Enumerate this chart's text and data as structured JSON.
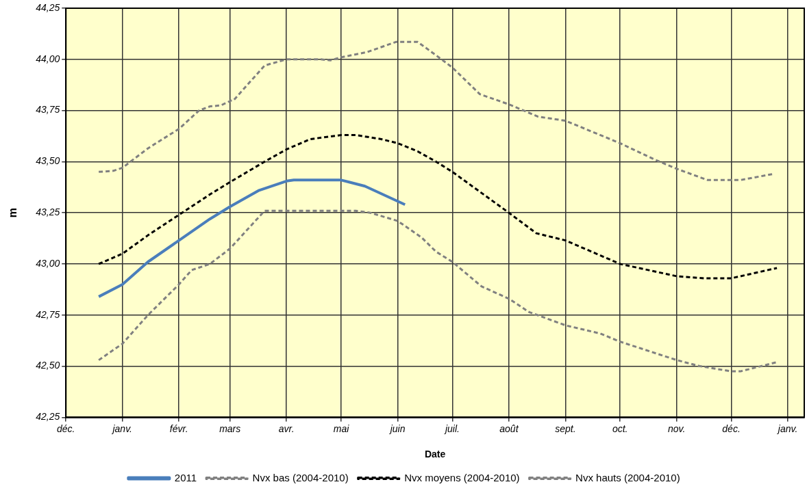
{
  "chart_data": {
    "type": "line",
    "xlabel": "Date",
    "ylabel": "m",
    "xlim": [
      "2010-12-01",
      "2012-01-10"
    ],
    "xticks": [
      {
        "value": "2010-12-01",
        "label": "déc."
      },
      {
        "value": "2011-01-01",
        "label": "janv."
      },
      {
        "value": "2011-02-01",
        "label": "févr."
      },
      {
        "value": "2011-03-01",
        "label": "mars"
      },
      {
        "value": "2011-04-01",
        "label": "avr."
      },
      {
        "value": "2011-05-01",
        "label": "mai"
      },
      {
        "value": "2011-06-01",
        "label": "juin"
      },
      {
        "value": "2011-07-01",
        "label": "juil."
      },
      {
        "value": "2011-08-01",
        "label": "août"
      },
      {
        "value": "2011-09-01",
        "label": "sept."
      },
      {
        "value": "2011-10-01",
        "label": "oct."
      },
      {
        "value": "2011-11-01",
        "label": "nov."
      },
      {
        "value": "2011-12-01",
        "label": "déc."
      },
      {
        "value": "2012-01-01",
        "label": "janv."
      }
    ],
    "ylim": [
      42.25,
      44.25
    ],
    "yticks": [
      {
        "value": 42.25,
        "label": "42,25"
      },
      {
        "value": 42.5,
        "label": "42,50"
      },
      {
        "value": 42.75,
        "label": "42,75"
      },
      {
        "value": 43,
        "label": "43,00"
      },
      {
        "value": 43.25,
        "label": "43,25"
      },
      {
        "value": 43.5,
        "label": "43,50"
      },
      {
        "value": 43.75,
        "label": "43,75"
      },
      {
        "value": 44,
        "label": "44,00"
      },
      {
        "value": 44.25,
        "label": "44,25"
      }
    ],
    "grid": true,
    "legend": "bottom",
    "marker": "none",
    "series": [
      {
        "name": "2011",
        "color": "#4a7ebb",
        "line_style": "solid",
        "x": [
          "2010-12-19",
          "2011-01-01",
          "2011-01-15",
          "2011-02-01",
          "2011-02-18",
          "2011-03-01",
          "2011-03-17",
          "2011-04-01",
          "2011-04-05",
          "2011-05-01",
          "2011-05-14",
          "2011-06-05"
        ],
        "values": [
          42.84,
          42.9,
          43.01,
          43.115,
          43.22,
          43.28,
          43.36,
          43.405,
          43.41,
          43.41,
          43.38,
          43.29
        ]
      },
      {
        "name": "Nvx bas (2004-2010)",
        "color": "#808080",
        "line_style": "dashed",
        "x": [
          "2010-12-19",
          "2011-01-01",
          "2011-01-15",
          "2011-02-01",
          "2011-02-08",
          "2011-02-18",
          "2011-03-01",
          "2011-03-20",
          "2011-05-09",
          "2011-05-17",
          "2011-06-01",
          "2011-06-14",
          "2011-06-22",
          "2011-07-01",
          "2011-07-17",
          "2011-08-01",
          "2011-08-12",
          "2011-09-01",
          "2011-09-20",
          "2011-10-01",
          "2011-11-01",
          "2011-11-14",
          "2011-12-01",
          "2011-12-06",
          "2011-12-26"
        ],
        "values": [
          42.53,
          42.61,
          42.75,
          42.9,
          42.97,
          43,
          43.075,
          43.26,
          43.26,
          43.25,
          43.21,
          43.13,
          43.06,
          43.01,
          42.89,
          42.83,
          42.765,
          42.7,
          42.66,
          42.62,
          42.53,
          42.5,
          42.475,
          42.475,
          42.52
        ]
      },
      {
        "name": "Nvx moyens (2004-2010)",
        "color": "#000000",
        "line_style": "dashed",
        "x": [
          "2010-12-19",
          "2011-01-01",
          "2011-01-15",
          "2011-02-01",
          "2011-02-18",
          "2011-03-01",
          "2011-03-20",
          "2011-04-01",
          "2011-04-14",
          "2011-05-01",
          "2011-05-09",
          "2011-05-23",
          "2011-06-01",
          "2011-06-12",
          "2011-06-22",
          "2011-07-01",
          "2011-08-01",
          "2011-08-16",
          "2011-09-01",
          "2011-10-01",
          "2011-11-01",
          "2011-11-16",
          "2011-12-01",
          "2011-12-26"
        ],
        "values": [
          43,
          43.05,
          43.14,
          43.24,
          43.34,
          43.4,
          43.5,
          43.56,
          43.61,
          43.63,
          43.63,
          43.61,
          43.59,
          43.55,
          43.5,
          43.45,
          43.25,
          43.15,
          43.115,
          43,
          42.94,
          42.93,
          42.93,
          42.98
        ]
      },
      {
        "name": "Nvx hauts (2004-2010)",
        "color": "#808080",
        "line_style": "dashed",
        "x": [
          "2010-12-19",
          "2010-12-27",
          "2011-01-01",
          "2011-01-15",
          "2011-01-23",
          "2011-02-01",
          "2011-02-12",
          "2011-02-18",
          "2011-02-24",
          "2011-03-02",
          "2011-03-03",
          "2011-03-20",
          "2011-04-01",
          "2011-04-20",
          "2011-04-25",
          "2011-05-01",
          "2011-05-15",
          "2011-05-31",
          "2011-06-12",
          "2011-06-22",
          "2011-07-01",
          "2011-07-16",
          "2011-08-01",
          "2011-08-17",
          "2011-09-01",
          "2011-10-01",
          "2011-10-20",
          "2011-11-01",
          "2011-11-18",
          "2011-12-06",
          "2011-12-24"
        ],
        "values": [
          43.45,
          43.455,
          43.47,
          43.565,
          43.61,
          43.66,
          43.75,
          43.77,
          43.775,
          43.8,
          43.8,
          43.97,
          44,
          44,
          43.995,
          44.01,
          44.035,
          44.085,
          44.085,
          44.02,
          43.96,
          43.83,
          43.78,
          43.72,
          43.7,
          43.59,
          43.51,
          43.465,
          43.41,
          43.41,
          43.44
        ]
      }
    ]
  }
}
